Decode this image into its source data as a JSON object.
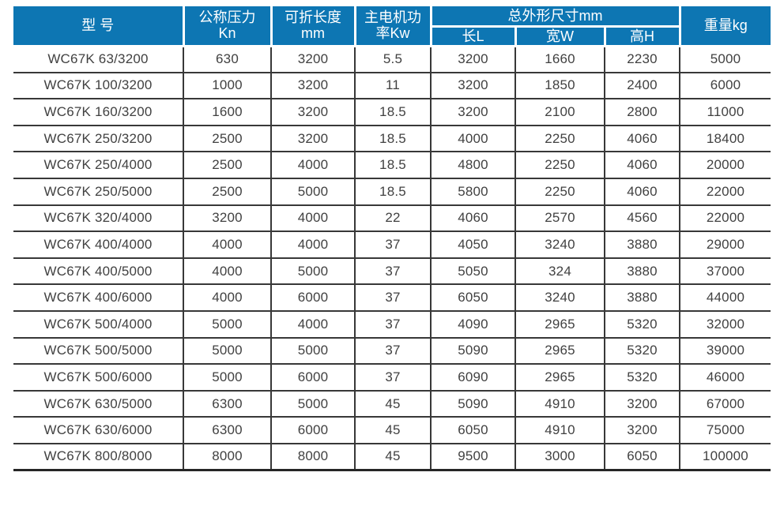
{
  "colors": {
    "header_bg": "#0d76b3",
    "header_text": "#ffffff",
    "body_text": "#414141",
    "grid_line": "#383838"
  },
  "chart_data": {
    "type": "table",
    "title": "",
    "header": {
      "model": "型 号",
      "pressure_line1": "公称压力",
      "pressure_line2": "Kn",
      "length_line1": "可折长度",
      "length_line2": "mm",
      "power_line1": "主电机功",
      "power_line2": "率Kw",
      "dimensions_group": "总外形尺寸mm",
      "dim_length": "长L",
      "dim_width": "宽W",
      "dim_height": "高H",
      "weight": "重量kg"
    },
    "column_keys": [
      "model",
      "pressure-kn",
      "length-mm",
      "power-kw",
      "dim-length-l",
      "dim-width-w",
      "dim-height-h",
      "weight-kg"
    ],
    "rows": [
      [
        "WC67K 63/3200",
        "630",
        "3200",
        "5.5",
        "3200",
        "1660",
        "2230",
        "5000"
      ],
      [
        "WC67K 100/3200",
        "1000",
        "3200",
        "11",
        "3200",
        "1850",
        "2400",
        "6000"
      ],
      [
        "WC67K 160/3200",
        "1600",
        "3200",
        "18.5",
        "3200",
        "2100",
        "2800",
        "11000"
      ],
      [
        "WC67K 250/3200",
        "2500",
        "3200",
        "18.5",
        "4000",
        "2250",
        "4060",
        "18400"
      ],
      [
        "WC67K 250/4000",
        "2500",
        "4000",
        "18.5",
        "4800",
        "2250",
        "4060",
        "20000"
      ],
      [
        "WC67K 250/5000",
        "2500",
        "5000",
        "18.5",
        "5800",
        "2250",
        "4060",
        "22000"
      ],
      [
        "WC67K 320/4000",
        "3200",
        "4000",
        "22",
        "4060",
        "2570",
        "4560",
        "22000"
      ],
      [
        "WC67K 400/4000",
        "4000",
        "4000",
        "37",
        "4050",
        "3240",
        "3880",
        "29000"
      ],
      [
        "WC67K 400/5000",
        "4000",
        "5000",
        "37",
        "5050",
        "324",
        "3880",
        "37000"
      ],
      [
        "WC67K 400/6000",
        "4000",
        "6000",
        "37",
        "6050",
        "3240",
        "3880",
        "44000"
      ],
      [
        "WC67K 500/4000",
        "5000",
        "4000",
        "37",
        "4090",
        "2965",
        "5320",
        "32000"
      ],
      [
        "WC67K 500/5000",
        "5000",
        "5000",
        "37",
        "5090",
        "2965",
        "5320",
        "39000"
      ],
      [
        "WC67K 500/6000",
        "5000",
        "6000",
        "37",
        "6090",
        "2965",
        "5320",
        "46000"
      ],
      [
        "WC67K 630/5000",
        "6300",
        "5000",
        "45",
        "5090",
        "4910",
        "3200",
        "67000"
      ],
      [
        "WC67K 630/6000",
        "6300",
        "6000",
        "45",
        "6050",
        "4910",
        "3200",
        "75000"
      ],
      [
        "WC67K 800/8000",
        "8000",
        "8000",
        "45",
        "9500",
        "3000",
        "6050",
        "100000"
      ]
    ]
  }
}
